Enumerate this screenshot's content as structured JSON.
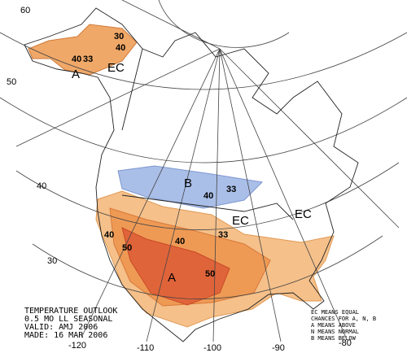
{
  "latitude_labels": [
    "60",
    "50",
    "40",
    "30"
  ],
  "longitude_labels": [
    "-120",
    "-110",
    "-100",
    "-90",
    "-80"
  ],
  "map_labels": [
    "30",
    "40",
    "40",
    "33",
    "A",
    "EC",
    "B",
    "40",
    "33",
    "EC",
    "EC",
    "40",
    "50",
    "40",
    "33",
    "A",
    "50"
  ],
  "title_block": {
    "lines": [
      "TEMPERATURE OUTLOOK",
      "0.5 MO LL SEASONAL",
      "VALID: AMJ 2006",
      "MADE: 16 MAR 2006"
    ]
  },
  "legend": {
    "lines": [
      "EC MEANS EQUAL",
      "CHANCES FOR A, N, B",
      "A MEANS ABOVE",
      "N MEANS NORMAL",
      "B MEANS BELOW"
    ]
  }
}
